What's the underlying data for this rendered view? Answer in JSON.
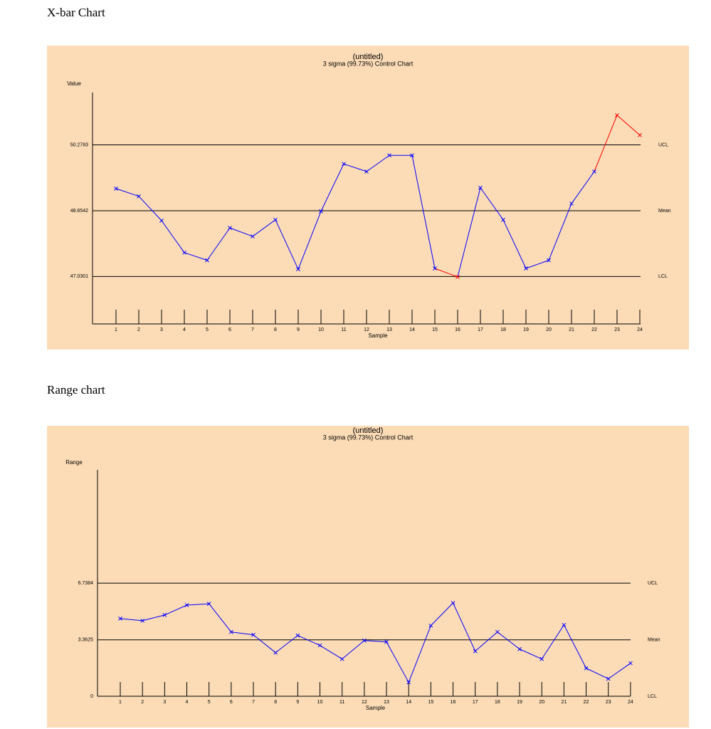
{
  "headings": [
    "X-bar Chart",
    "Range  chart"
  ],
  "chart_data": [
    {
      "type": "line",
      "title": "(untitled)",
      "subtitle": "3 sigma (99.73%) Control Chart",
      "y_label": "Value",
      "x_label": "Sample",
      "categories": [
        "1",
        "2",
        "3",
        "4",
        "5",
        "6",
        "7",
        "8",
        "9",
        "10",
        "11",
        "12",
        "13",
        "14",
        "15",
        "16",
        "17",
        "18",
        "19",
        "20",
        "21",
        "22",
        "23",
        "24"
      ],
      "values": [
        49.2,
        49.01,
        48.41,
        47.62,
        47.43,
        48.23,
        48.02,
        48.43,
        47.21,
        48.64,
        49.81,
        49.62,
        50.02,
        50.02,
        47.23,
        47.02,
        49.22,
        48.43,
        47.23,
        47.43,
        48.83,
        49.62,
        51.01,
        50.52
      ],
      "color": "#0000ff",
      "out_of_control_color": "#ff0000",
      "ylim": [
        45.86,
        51.57
      ],
      "yticks": [
        47.0301,
        48.6542,
        50.2783
      ],
      "control_line_names": [
        "LCL",
        "Mean",
        "UCL"
      ]
    },
    {
      "type": "line",
      "title": "(untitled)",
      "subtitle": "3 sigma (99.73%) Control Chart",
      "y_label": "Range",
      "x_label": "Sample",
      "categories": [
        "1",
        "2",
        "3",
        "4",
        "5",
        "6",
        "7",
        "8",
        "9",
        "10",
        "11",
        "12",
        "13",
        "14",
        "15",
        "16",
        "17",
        "18",
        "19",
        "20",
        "21",
        "22",
        "23",
        "24"
      ],
      "values": [
        4.63,
        4.5,
        4.84,
        5.43,
        5.51,
        3.83,
        3.66,
        2.6,
        3.62,
        3.03,
        2.22,
        3.32,
        3.24,
        0.83,
        4.21,
        5.56,
        2.69,
        3.83,
        2.81,
        2.22,
        4.25,
        1.67,
        1.04,
        1.97
      ],
      "color": "#0000ff",
      "out_of_control_color": "#ff0000",
      "ylim": [
        0,
        13.49
      ],
      "yticks": [
        0,
        3.3625,
        6.7384
      ],
      "control_line_names": [
        "LCL",
        "Mean",
        "UCL"
      ]
    }
  ]
}
